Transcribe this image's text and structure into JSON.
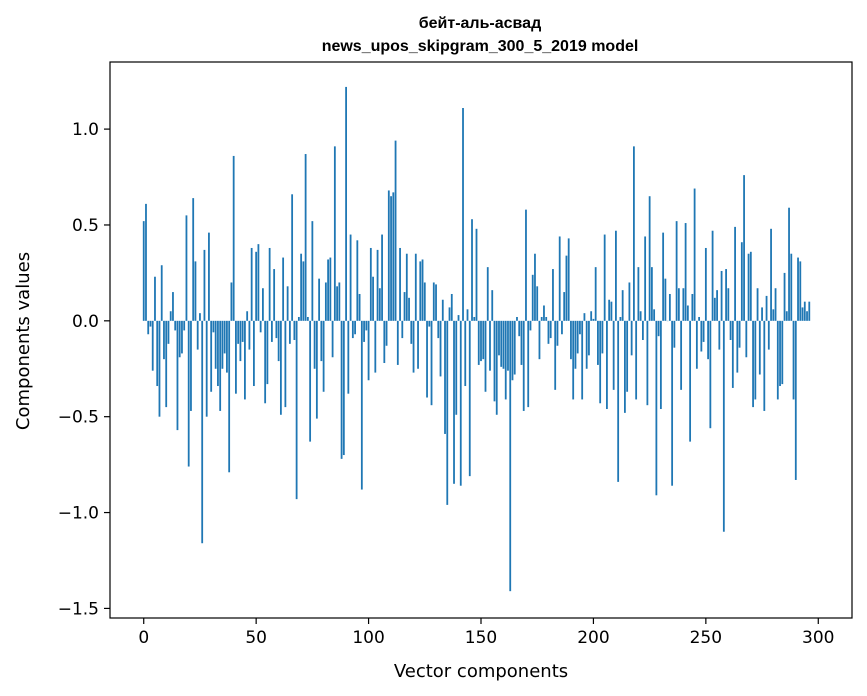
{
  "chart_data": {
    "type": "bar",
    "title_line1": "бейт-аль-асвад",
    "title_line2": "news_upos_skipgram_300_5_2019 model",
    "xlabel": "Vector components",
    "ylabel": "Components values",
    "xlim": [
      -15,
      315
    ],
    "ylim": [
      -1.55,
      1.35
    ],
    "xticks": [
      0,
      50,
      100,
      150,
      200,
      250,
      300
    ],
    "xtick_labels": [
      "0",
      "50",
      "100",
      "150",
      "200",
      "250",
      "300"
    ],
    "yticks": [
      -1.5,
      -1.0,
      -0.5,
      0.0,
      0.5,
      1.0
    ],
    "ytick_labels": [
      "−1.5",
      "−1.0",
      "−0.5",
      "0.0",
      "0.5",
      "1.0"
    ],
    "bar_color": "#1f77b4",
    "values": [
      0.52,
      0.61,
      -0.07,
      -0.03,
      -0.26,
      0.23,
      -0.34,
      -0.5,
      0.29,
      -0.2,
      -0.45,
      -0.12,
      0.05,
      0.15,
      -0.05,
      -0.57,
      -0.19,
      -0.17,
      -0.05,
      0.55,
      -0.76,
      -0.47,
      0.64,
      0.31,
      -0.15,
      0.04,
      -1.16,
      0.37,
      -0.5,
      0.46,
      -0.37,
      -0.06,
      -0.25,
      -0.34,
      -0.47,
      -0.25,
      -0.17,
      -0.27,
      -0.79,
      0.2,
      0.86,
      -0.38,
      -0.12,
      -0.21,
      -0.11,
      -0.41,
      0.05,
      -0.15,
      0.38,
      -0.34,
      0.36,
      0.4,
      -0.06,
      0.17,
      -0.43,
      -0.33,
      0.38,
      -0.11,
      0.27,
      -0.09,
      -0.21,
      -0.49,
      0.33,
      -0.45,
      0.18,
      -0.12,
      0.66,
      -0.1,
      -0.93,
      0.02,
      0.35,
      0.31,
      0.87,
      0.02,
      -0.63,
      0.52,
      -0.25,
      -0.51,
      0.22,
      -0.21,
      -0.37,
      0.2,
      0.32,
      0.33,
      -0.19,
      0.91,
      0.18,
      0.2,
      -0.72,
      -0.7,
      1.22,
      -0.38,
      0.45,
      -0.09,
      -0.07,
      0.42,
      0.14,
      -0.88,
      -0.11,
      -0.05,
      -0.31,
      0.38,
      0.23,
      -0.27,
      0.37,
      0.17,
      0.45,
      -0.22,
      -0.13,
      0.68,
      0.65,
      0.67,
      0.94,
      -0.23,
      0.38,
      -0.09,
      0.15,
      0.35,
      0.12,
      -0.12,
      -0.27,
      0.35,
      -0.25,
      0.31,
      0.32,
      0.2,
      -0.4,
      -0.03,
      -0.44,
      0.2,
      0.19,
      -0.09,
      -0.29,
      0.11,
      -0.59,
      -0.96,
      0.07,
      0.14,
      -0.85,
      -0.49,
      0.03,
      -0.86,
      1.11,
      -0.34,
      0.06,
      -0.81,
      0.53,
      0.02,
      0.48,
      -0.23,
      -0.21,
      -0.2,
      -0.37,
      0.28,
      -0.26,
      0.16,
      -0.42,
      -0.49,
      -0.18,
      -0.24,
      -0.25,
      -0.41,
      -0.26,
      -1.41,
      -0.31,
      -0.28,
      0.02,
      -0.08,
      -0.23,
      -0.47,
      0.58,
      -0.45,
      -0.05,
      0.24,
      0.35,
      0.18,
      -0.2,
      0.02,
      0.08,
      0.02,
      -0.12,
      -0.09,
      0.27,
      -0.36,
      -0.13,
      0.44,
      -0.07,
      0.15,
      0.34,
      0.43,
      -0.2,
      -0.41,
      -0.25,
      -0.17,
      -0.07,
      -0.41,
      0.04,
      -0.25,
      -0.18,
      0.05,
      0.01,
      0.28,
      -0.23,
      -0.43,
      -0.17,
      0.45,
      -0.46,
      0.11,
      0.1,
      -0.36,
      0.47,
      -0.84,
      0.02,
      0.16,
      -0.48,
      -0.37,
      0.2,
      -0.18,
      0.91,
      -0.41,
      0.28,
      0.05,
      -0.1,
      0.44,
      -0.44,
      0.65,
      0.28,
      0.06,
      -0.91,
      -0.08,
      -0.46,
      0.46,
      0.22,
      0.0,
      0.14,
      -0.86,
      -0.14,
      0.52,
      0.17,
      -0.36,
      0.17,
      0.51,
      0.08,
      -0.63,
      0.14,
      0.69,
      -0.25,
      0.02,
      -0.16,
      -0.11,
      0.38,
      -0.2,
      -0.56,
      0.47,
      0.12,
      0.16,
      -0.15,
      0.26,
      -1.1,
      0.27,
      0.17,
      -0.1,
      -0.35,
      0.49,
      -0.27,
      -0.14,
      0.41,
      0.76,
      -0.19,
      0.35,
      0.36,
      -0.45,
      -0.41,
      0.17,
      -0.28,
      0.07,
      -0.47,
      0.13,
      -0.15,
      0.48,
      0.06,
      0.17,
      -0.41,
      -0.34,
      -0.33,
      0.25,
      0.05,
      0.59,
      0.35,
      -0.41,
      -0.83,
      0.33,
      0.31,
      0.07,
      0.1,
      0.05,
      0.1
    ]
  }
}
